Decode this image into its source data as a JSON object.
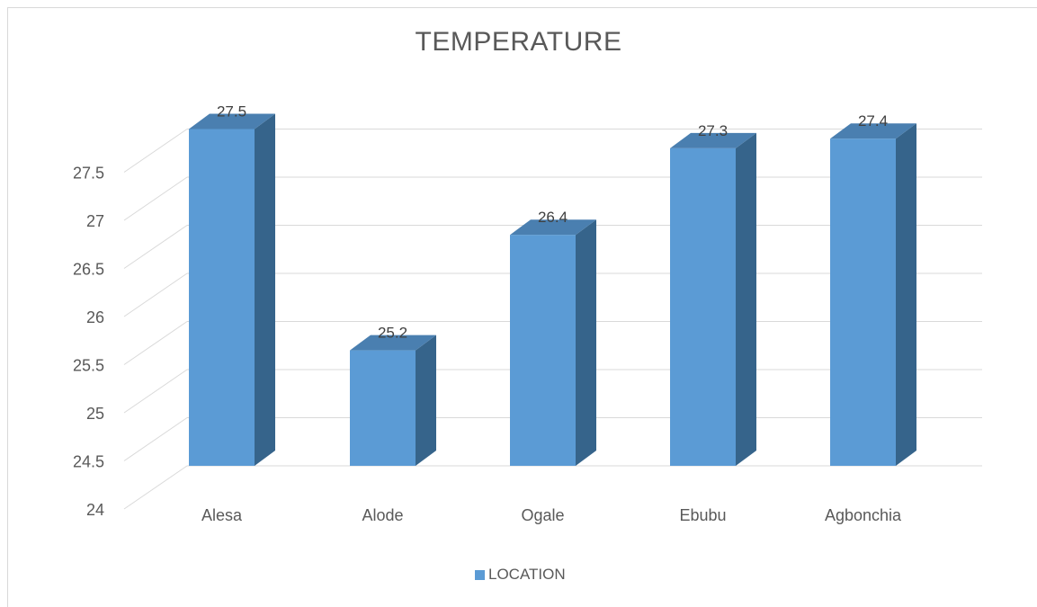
{
  "chart_data": {
    "type": "bar",
    "title": "TEMPERATURE",
    "categories": [
      "Alesa",
      "Alode",
      "Ogale",
      "Ebubu",
      "Agbonchia"
    ],
    "series": [
      {
        "name": "LOCATION",
        "values": [
          27.5,
          25.2,
          26.4,
          27.3,
          27.4
        ],
        "color": "#5b9bd5"
      }
    ],
    "y_ticks": [
      "24",
      "24.5",
      "25",
      "25.5",
      "26",
      "26.5",
      "27",
      "27.5"
    ],
    "ylim": [
      24,
      27.75
    ],
    "data_labels": [
      "27.5",
      "25.2",
      "26.4",
      "27.3",
      "27.4"
    ],
    "style": "3d-column",
    "grid": true,
    "legend_position": "bottom",
    "colors": {
      "front": "#5b9bd5",
      "side": "#36648b",
      "top": "#4a7fb0",
      "grid": "#d9d9d9"
    }
  }
}
